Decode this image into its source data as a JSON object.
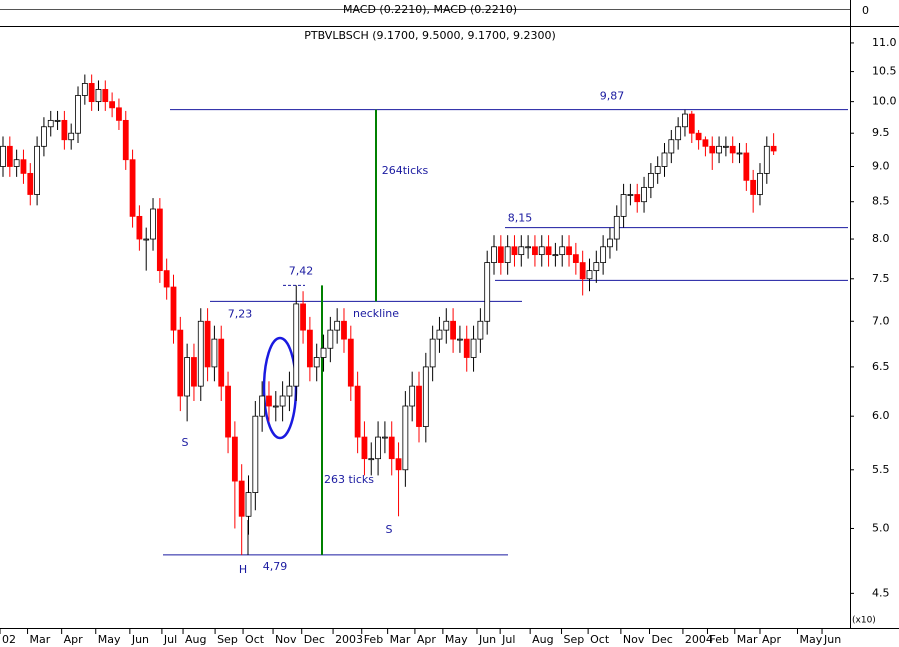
{
  "chart_data": {
    "type": "candlestick",
    "title": "PTBVLBSCH (9.1700, 9.5000, 9.1700, 9.2300)",
    "indicator_title": "MACD (0.2210), MACD (0.2210)",
    "indicator_yticks": [
      0
    ],
    "volume_label": "(x10)",
    "log_scale": true,
    "up_color": "#ffffff",
    "down_color": "#ff0000",
    "xlim": [
      -0.44,
      124.2
    ],
    "xticks": [
      {
        "value": -0.44,
        "label": "02"
      },
      {
        "value": 3.6,
        "label": "Mar"
      },
      {
        "value": 8.6,
        "label": "Apr"
      },
      {
        "value": 13.6,
        "label": "May"
      },
      {
        "value": 18.6,
        "label": "Jun"
      },
      {
        "value": 23.3,
        "label": "Jul"
      },
      {
        "value": 26.4,
        "label": "Aug"
      },
      {
        "value": 31.1,
        "label": "Sep"
      },
      {
        "value": 35.2,
        "label": "Oct"
      },
      {
        "value": 39.6,
        "label": "Nov"
      },
      {
        "value": 43.8,
        "label": "Dec"
      },
      {
        "value": 48.4,
        "label": "2003"
      },
      {
        "value": 52.6,
        "label": "Feb"
      },
      {
        "value": 56.4,
        "label": "Mar"
      },
      {
        "value": 60.4,
        "label": "Apr"
      },
      {
        "value": 64.5,
        "label": "May"
      },
      {
        "value": 69.5,
        "label": "Jun"
      },
      {
        "value": 72.9,
        "label": "Jul"
      },
      {
        "value": 77.3,
        "label": "Aug"
      },
      {
        "value": 81.9,
        "label": "Sep"
      },
      {
        "value": 85.8,
        "label": "Oct"
      },
      {
        "value": 90.6,
        "label": "Nov"
      },
      {
        "value": 94.8,
        "label": "Dec"
      },
      {
        "value": 99.7,
        "label": "2004"
      },
      {
        "value": 103.3,
        "label": "Feb"
      },
      {
        "value": 107.3,
        "label": "Mar"
      },
      {
        "value": 111,
        "label": "Apr"
      },
      {
        "value": 116.5,
        "label": "May"
      },
      {
        "value": 120.1,
        "label": "Jun"
      }
    ],
    "ylim": [
      4.38,
      11.27
    ],
    "yticks": [
      {
        "value": 11,
        "label": "11.0"
      },
      10.5,
      {
        "value": 10,
        "label": "10.0"
      },
      9.5,
      {
        "value": 9,
        "label": "9.0"
      },
      8.5,
      {
        "value": 8,
        "label": "8.0"
      },
      7.5,
      {
        "value": 7,
        "label": "7.0"
      },
      6.5,
      {
        "value": 6,
        "label": "6.0"
      },
      5.5,
      {
        "value": 5,
        "label": "5.0"
      },
      4.5
    ],
    "x": [
      0,
      1,
      2,
      3,
      4,
      5,
      6,
      7,
      8,
      9,
      10,
      11,
      12,
      13,
      14,
      15,
      16,
      17,
      18,
      19,
      20,
      21,
      22,
      23,
      24,
      25,
      26,
      27,
      28,
      29,
      30,
      31,
      32,
      33,
      34,
      35,
      36,
      37,
      38,
      39,
      40,
      41,
      42,
      43,
      44,
      45,
      46,
      47,
      48,
      49,
      50,
      51,
      52,
      53,
      54,
      55,
      56,
      57,
      58,
      59,
      60,
      61,
      62,
      63,
      64,
      65,
      66,
      67,
      68,
      69,
      70,
      71,
      72,
      73,
      74,
      75,
      76,
      77,
      78,
      79,
      80,
      81,
      82,
      83,
      84,
      85,
      86,
      87,
      88,
      89,
      90,
      91,
      92,
      93,
      94,
      95,
      96,
      97,
      98,
      99,
      100,
      101,
      102,
      103,
      104,
      105,
      106,
      107,
      108,
      109,
      110,
      111,
      112,
      113
    ],
    "open": [
      9.0,
      9.3,
      9.0,
      9.1,
      8.9,
      8.6,
      9.3,
      9.6,
      9.7,
      9.7,
      9.4,
      9.5,
      10.1,
      10.3,
      10.0,
      10.2,
      10.0,
      9.9,
      9.7,
      9.1,
      8.3,
      8.0,
      8.0,
      8.4,
      7.6,
      7.4,
      6.9,
      6.2,
      6.6,
      6.3,
      7.0,
      6.5,
      6.8,
      6.3,
      5.8,
      5.4,
      5.1,
      5.3,
      6.0,
      6.2,
      6.1,
      6.1,
      6.2,
      6.3,
      7.2,
      6.9,
      6.5,
      6.6,
      6.7,
      6.9,
      7.0,
      6.8,
      6.3,
      5.8,
      5.6,
      5.6,
      5.8,
      5.8,
      5.6,
      5.5,
      6.1,
      6.3,
      5.9,
      6.5,
      6.8,
      6.9,
      7.0,
      6.8,
      6.8,
      6.6,
      6.8,
      7.0,
      7.7,
      7.9,
      7.7,
      7.9,
      7.8,
      7.9,
      7.9,
      7.8,
      7.9,
      7.8,
      7.8,
      7.9,
      7.8,
      7.7,
      7.5,
      7.6,
      7.7,
      7.9,
      8.0,
      8.3,
      8.6,
      8.6,
      8.5,
      8.7,
      8.9,
      9.0,
      9.2,
      9.4,
      9.6,
      9.8,
      9.5,
      9.4,
      9.3,
      9.2,
      9.3,
      9.3,
      9.2,
      9.2,
      8.8,
      8.6,
      8.9,
      9.3
    ],
    "high": [
      9.45,
      9.45,
      9.25,
      9.25,
      9.05,
      9.45,
      9.75,
      9.85,
      9.85,
      9.85,
      9.65,
      10.25,
      10.45,
      10.45,
      10.35,
      10.35,
      10.15,
      10.05,
      9.85,
      9.25,
      8.45,
      8.15,
      8.55,
      8.55,
      7.75,
      7.55,
      7.05,
      6.75,
      6.75,
      7.15,
      7.15,
      6.95,
      6.95,
      6.45,
      5.95,
      5.55,
      5.45,
      6.15,
      6.35,
      6.35,
      6.25,
      6.35,
      6.45,
      7.42,
      7.35,
      7.05,
      6.75,
      6.85,
      7.05,
      7.15,
      7.15,
      6.95,
      6.45,
      5.95,
      5.75,
      5.95,
      5.95,
      5.95,
      5.75,
      6.25,
      6.45,
      6.45,
      6.65,
      6.95,
      7.05,
      7.15,
      7.15,
      6.95,
      6.95,
      6.95,
      7.15,
      7.85,
      8.05,
      8.05,
      8.05,
      8.05,
      8.05,
      8.05,
      8.05,
      8.05,
      8.05,
      7.95,
      8.05,
      8.05,
      7.95,
      7.85,
      7.75,
      7.85,
      8.05,
      8.15,
      8.45,
      8.75,
      8.75,
      8.75,
      8.85,
      9.05,
      9.15,
      9.35,
      9.55,
      9.75,
      9.87,
      9.85,
      9.55,
      9.45,
      9.45,
      9.45,
      9.45,
      9.45,
      9.35,
      9.35,
      8.95,
      9.05,
      9.45,
      9.5
    ],
    "low": [
      8.85,
      8.85,
      8.85,
      8.75,
      8.45,
      8.45,
      9.15,
      9.45,
      9.55,
      9.25,
      9.25,
      9.35,
      9.95,
      9.85,
      9.85,
      9.85,
      9.75,
      9.55,
      8.95,
      8.15,
      7.85,
      7.6,
      7.85,
      7.45,
      7.25,
      6.75,
      6.05,
      5.95,
      6.15,
      6.15,
      6.35,
      6.35,
      6.15,
      5.65,
      5.0,
      4.79,
      4.95,
      5.15,
      5.85,
      5.95,
      5.95,
      5.95,
      6.05,
      6.15,
      6.75,
      6.35,
      6.35,
      6.45,
      6.55,
      6.75,
      6.65,
      6.15,
      5.65,
      5.45,
      5.45,
      5.45,
      5.65,
      5.45,
      5.1,
      5.35,
      5.95,
      5.75,
      5.75,
      6.35,
      6.65,
      6.75,
      6.65,
      6.65,
      6.45,
      6.45,
      6.65,
      6.85,
      7.55,
      7.55,
      7.55,
      7.65,
      7.65,
      7.75,
      7.65,
      7.65,
      7.65,
      7.65,
      7.65,
      7.65,
      7.55,
      7.3,
      7.35,
      7.45,
      7.55,
      7.75,
      7.85,
      8.15,
      8.45,
      8.35,
      8.35,
      8.55,
      8.75,
      8.85,
      9.05,
      9.25,
      9.45,
      9.35,
      9.25,
      9.15,
      8.95,
      9.05,
      9.15,
      9.05,
      9.05,
      8.65,
      8.35,
      8.45,
      8.75,
      9.17
    ],
    "close": [
      9.3,
      9.0,
      9.1,
      8.9,
      8.6,
      9.3,
      9.6,
      9.7,
      9.7,
      9.4,
      9.5,
      10.1,
      10.3,
      10.0,
      10.2,
      10.0,
      9.9,
      9.7,
      9.1,
      8.3,
      8.0,
      8.0,
      8.4,
      7.6,
      7.4,
      6.9,
      6.2,
      6.6,
      6.3,
      7.0,
      6.5,
      6.8,
      6.3,
      5.8,
      5.4,
      5.1,
      5.3,
      6.0,
      6.2,
      6.1,
      6.1,
      6.2,
      6.3,
      7.2,
      6.9,
      6.5,
      6.6,
      6.7,
      6.9,
      7.0,
      6.8,
      6.3,
      5.8,
      5.6,
      5.6,
      5.8,
      5.8,
      5.6,
      5.5,
      6.1,
      6.3,
      5.9,
      6.5,
      6.8,
      6.9,
      7.0,
      6.8,
      6.8,
      6.6,
      6.8,
      7.0,
      7.7,
      7.9,
      7.7,
      7.9,
      7.8,
      7.9,
      7.9,
      7.8,
      7.9,
      7.8,
      7.8,
      7.9,
      7.8,
      7.7,
      7.5,
      7.6,
      7.7,
      7.9,
      8.0,
      8.3,
      8.6,
      8.6,
      8.5,
      8.7,
      8.9,
      9.0,
      9.2,
      9.4,
      9.6,
      9.8,
      9.5,
      9.4,
      9.3,
      9.2,
      9.3,
      9.3,
      9.2,
      9.2,
      8.8,
      8.6,
      8.9,
      9.3,
      9.23
    ],
    "levels": [
      {
        "value": 9.87,
        "label": "9,87"
      },
      {
        "value": 8.15,
        "label": "8,15"
      },
      {
        "value": 7.48
      },
      {
        "value": 7.42,
        "label": "7,42"
      },
      {
        "value": 7.23,
        "label": "7,23"
      },
      {
        "value": 4.79,
        "label": "4,79"
      }
    ],
    "annotations": [
      "neckline",
      "264ticks",
      "263 ticks",
      "S",
      "S",
      "H"
    ]
  }
}
